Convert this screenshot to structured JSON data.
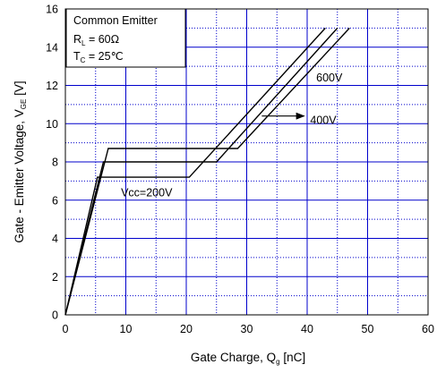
{
  "chart_data": {
    "type": "line",
    "xlabel": "Gate Charge, Q",
    "xlabel_sub": "g",
    "xlabel_unit": " [nC]",
    "ylabel": "Gate - Emitter Voltage, V",
    "ylabel_sub": "GE",
    "ylabel_unit": " [V]",
    "xlim": [
      0,
      60
    ],
    "ylim": [
      0,
      16
    ],
    "x_ticks": [
      0,
      10,
      20,
      30,
      40,
      50,
      60
    ],
    "y_ticks": [
      0,
      2,
      4,
      6,
      8,
      10,
      12,
      14,
      16
    ],
    "grid": true,
    "conditions": {
      "line1": "Common Emitter",
      "line2_main": "R",
      "line2_sub": "L",
      "line2_rest": " = 60Ω",
      "line3_main": "T",
      "line3_sub": "C",
      "line3_rest": " = 25℃"
    },
    "series": [
      {
        "name": "Vcc=200V",
        "points": [
          [
            0,
            0
          ],
          [
            5.3,
            7.2
          ],
          [
            20.5,
            7.2
          ],
          [
            43,
            15
          ]
        ]
      },
      {
        "name": "400V",
        "points": [
          [
            0,
            0
          ],
          [
            6.3,
            8.0
          ],
          [
            25,
            8.0
          ],
          [
            45,
            15
          ]
        ]
      },
      {
        "name": "600V",
        "points": [
          [
            0,
            0
          ],
          [
            7.1,
            8.7
          ],
          [
            28.5,
            8.7
          ],
          [
            47,
            15
          ]
        ]
      }
    ],
    "annotations": [
      {
        "text": "600V",
        "x": 41.5,
        "y": 12.2
      },
      {
        "text": "400V",
        "x": 40.5,
        "y": 10.0,
        "arrow_from": [
          32.5,
          10.4
        ],
        "arrow_to": [
          39.5,
          10.4
        ]
      },
      {
        "text": "Vcc=200V",
        "x": 9.2,
        "y": 6.2
      }
    ],
    "colors": {
      "grid": "#0000cc",
      "line": "#000000"
    }
  }
}
